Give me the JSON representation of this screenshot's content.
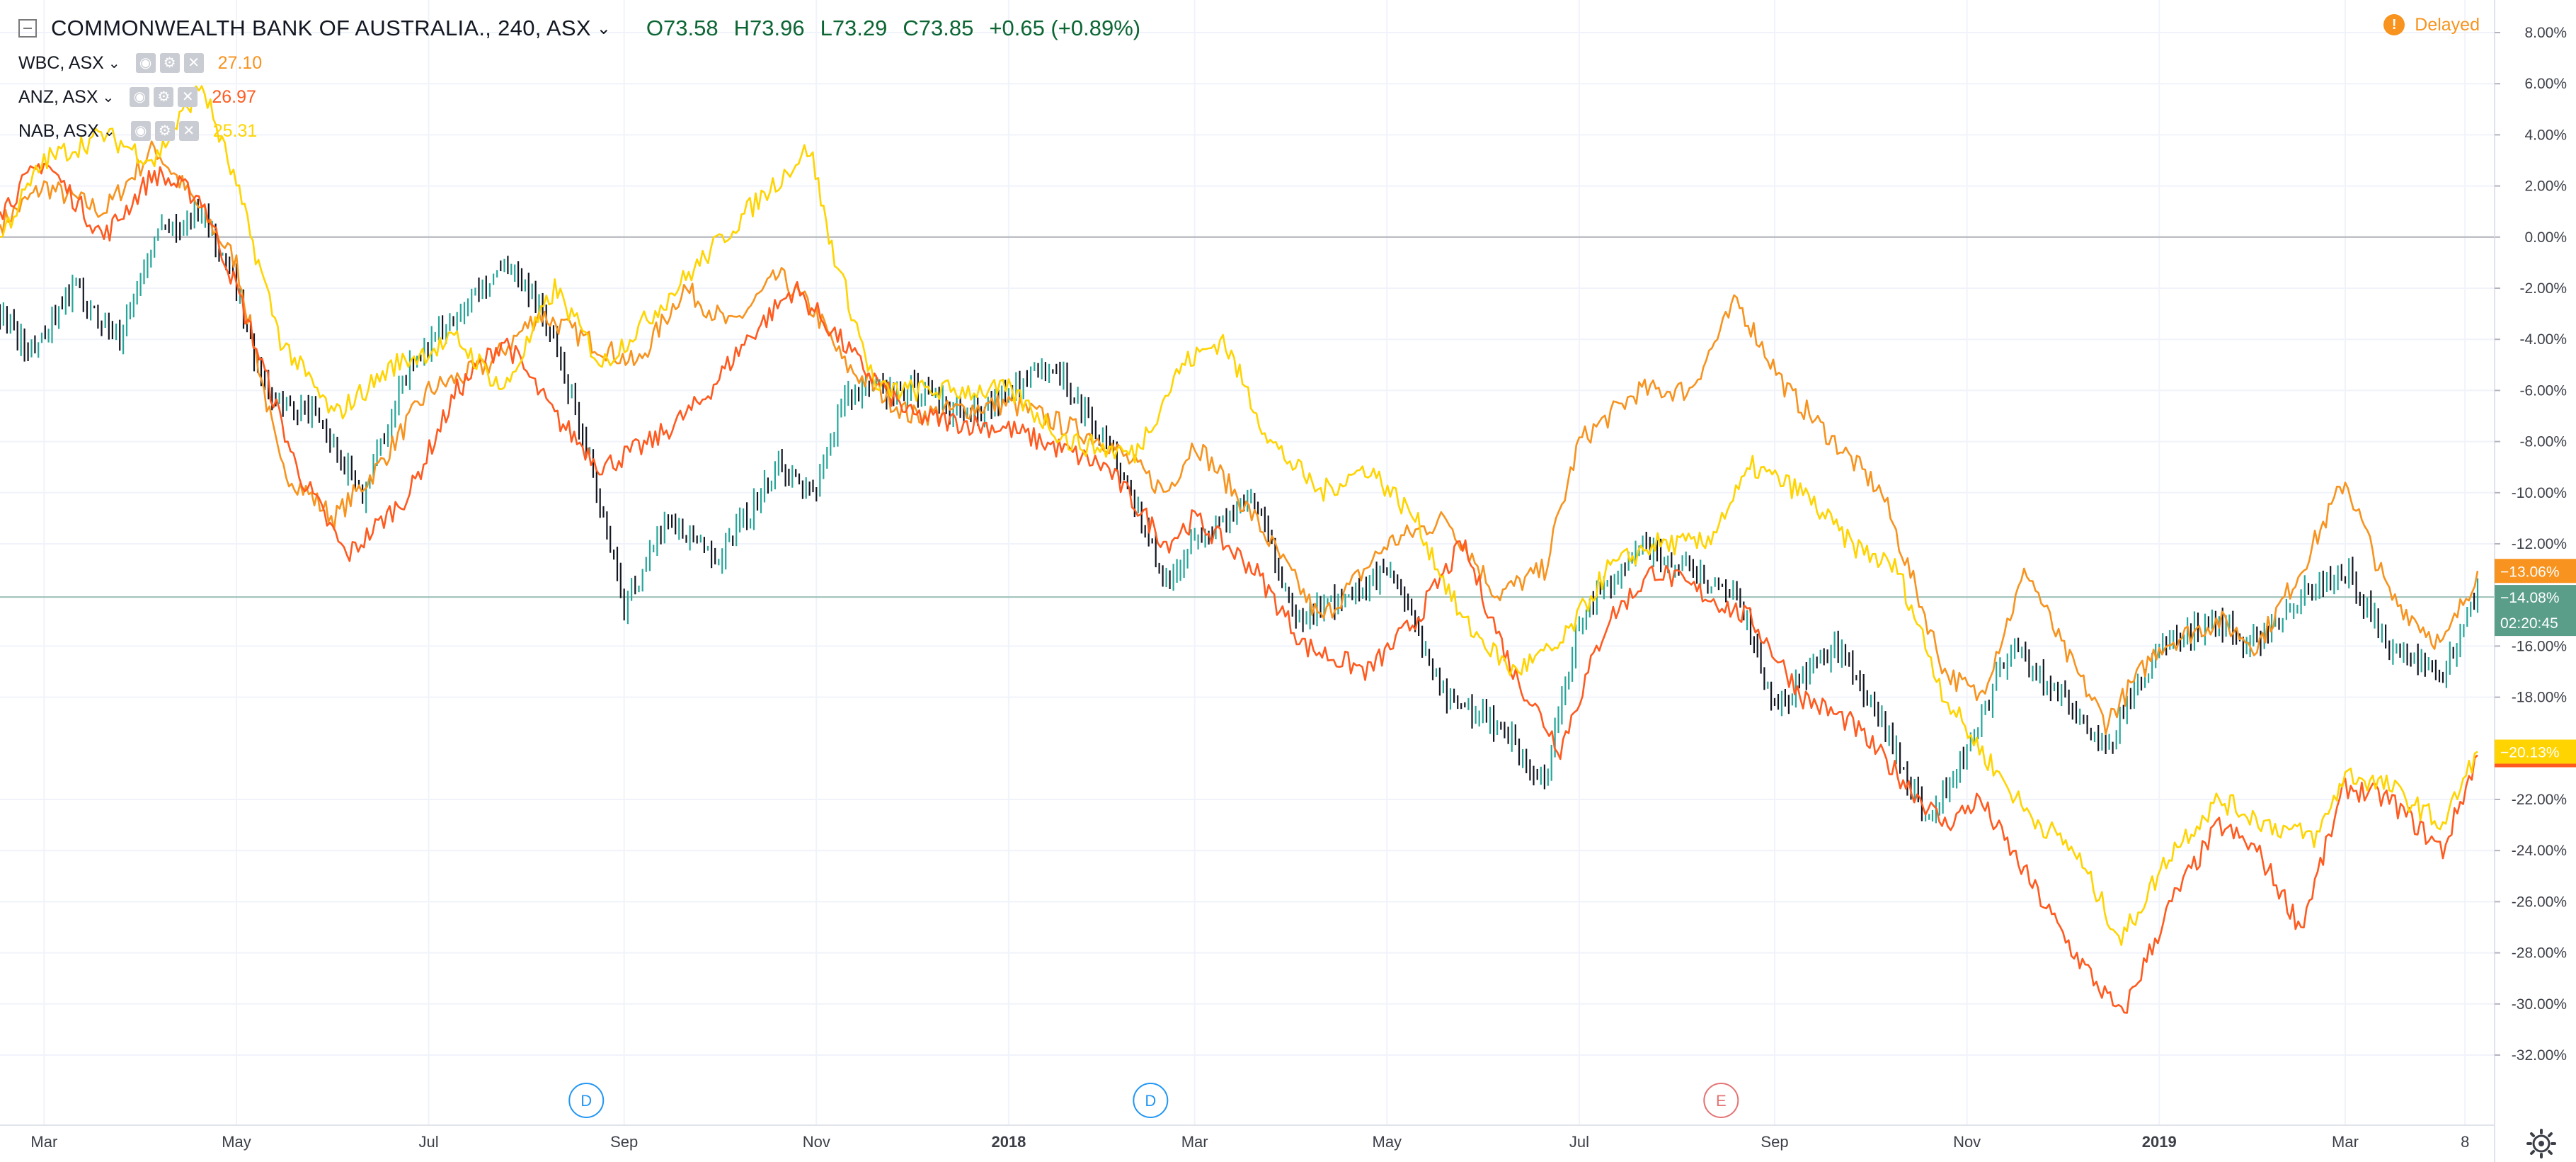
{
  "header": {
    "title": "COMMONWEALTH BANK OF AUSTRALIA., 240, ASX",
    "ohlc": {
      "open": "O73.58",
      "high": "H73.96",
      "low": "L73.29",
      "close": "C73.85",
      "change": "+0.65 (+0.89%)"
    },
    "delayed_label": "Delayed",
    "delayed_icon": "!"
  },
  "compare": [
    {
      "symbol": "WBC, ASX",
      "value": "27.10",
      "color": "#f7931e"
    },
    {
      "symbol": "ANZ, ASX",
      "value": "26.97",
      "color": "#ff5a1f"
    },
    {
      "symbol": "NAB, ASX",
      "value": "25.31",
      "color": "#ffd400"
    }
  ],
  "chart_data": {
    "type": "line",
    "title": "COMMONWEALTH BANK OF AUSTRALIA., 240, ASX",
    "y_unit": "%",
    "ylim": [
      -33.5,
      9.2
    ],
    "y_ticks": [
      "8.00%",
      "6.00%",
      "4.00%",
      "2.00%",
      "0.00%",
      "-2.00%",
      "-4.00%",
      "-6.00%",
      "-8.00%",
      "-10.00%",
      "-12.00%",
      "-16.00%",
      "-18.00%",
      "-22.00%",
      "-24.00%",
      "-26.00%",
      "-28.00%",
      "-30.00%",
      "-32.00%"
    ],
    "y_tick_values": [
      8,
      6,
      4,
      2,
      0,
      -2,
      -4,
      -6,
      -8,
      -10,
      -12,
      -16,
      -18,
      -22,
      -24,
      -26,
      -28,
      -30,
      -32
    ],
    "x_range": [
      "2017-02-15",
      "2019-04-12"
    ],
    "x_ticks": [
      {
        "label": "Mar",
        "date": "2017-03-01"
      },
      {
        "label": "May",
        "date": "2017-05-01"
      },
      {
        "label": "Jul",
        "date": "2017-07-01"
      },
      {
        "label": "Sep",
        "date": "2017-09-01"
      },
      {
        "label": "Nov",
        "date": "2017-11-01"
      },
      {
        "label": "2018",
        "date": "2018-01-01",
        "bold": true
      },
      {
        "label": "Mar",
        "date": "2018-03-01"
      },
      {
        "label": "May",
        "date": "2018-05-01"
      },
      {
        "label": "Jul",
        "date": "2018-07-01"
      },
      {
        "label": "Sep",
        "date": "2018-09-01"
      },
      {
        "label": "Nov",
        "date": "2018-11-01"
      },
      {
        "label": "2019",
        "date": "2019-01-01",
        "bold": true
      },
      {
        "label": "Mar",
        "date": "2019-03-01"
      },
      {
        "label": "8",
        "date": "2019-04-08"
      }
    ],
    "grid": true,
    "series": [
      {
        "name": "COMMONWEALTH BANK OF AUSTRALIA., 240, ASX",
        "style": "bars",
        "color": "#131722",
        "up_color": "#26a69a",
        "last": -14.08,
        "points": [
          [
            "2017-02-15",
            -3
          ],
          [
            "2017-02-25",
            -4.5
          ],
          [
            "2017-03-10",
            -2
          ],
          [
            "2017-03-25",
            -4
          ],
          [
            "2017-04-05",
            0
          ],
          [
            "2017-04-20",
            1
          ],
          [
            "2017-05-01",
            -2
          ],
          [
            "2017-05-10",
            -6
          ],
          [
            "2017-05-25",
            -7
          ],
          [
            "2017-06-10",
            -10
          ],
          [
            "2017-06-25",
            -5
          ],
          [
            "2017-07-10",
            -3
          ],
          [
            "2017-07-25",
            -1
          ],
          [
            "2017-08-05",
            -2.5
          ],
          [
            "2017-08-20",
            -8
          ],
          [
            "2017-09-01",
            -14.5
          ],
          [
            "2017-09-15",
            -11
          ],
          [
            "2017-10-01",
            -12.5
          ],
          [
            "2017-10-20",
            -9
          ],
          [
            "2017-11-01",
            -10
          ],
          [
            "2017-11-10",
            -6
          ],
          [
            "2017-12-01",
            -6
          ],
          [
            "2017-12-20",
            -7
          ],
          [
            "2018-01-01",
            -6
          ],
          [
            "2018-01-15",
            -5
          ],
          [
            "2018-02-01",
            -8
          ],
          [
            "2018-02-20",
            -13.5
          ],
          [
            "2018-03-01",
            -12
          ],
          [
            "2018-03-20",
            -10
          ],
          [
            "2018-04-01",
            -15
          ],
          [
            "2018-04-20",
            -14
          ],
          [
            "2018-05-01",
            -13
          ],
          [
            "2018-05-20",
            -18
          ],
          [
            "2018-06-05",
            -19
          ],
          [
            "2018-06-20",
            -21.5
          ],
          [
            "2018-07-01",
            -15
          ],
          [
            "2018-07-20",
            -12
          ],
          [
            "2018-08-05",
            -13
          ],
          [
            "2018-08-20",
            -14
          ],
          [
            "2018-09-01",
            -18.5
          ],
          [
            "2018-09-20",
            -16
          ],
          [
            "2018-10-05",
            -19
          ],
          [
            "2018-10-20",
            -23
          ],
          [
            "2018-11-01",
            -20
          ],
          [
            "2018-11-15",
            -16
          ],
          [
            "2018-12-01",
            -18
          ],
          [
            "2018-12-15",
            -20
          ],
          [
            "2019-01-01",
            -16
          ],
          [
            "2019-01-20",
            -15
          ],
          [
            "2019-02-01",
            -16
          ],
          [
            "2019-02-15",
            -14
          ],
          [
            "2019-03-01",
            -13
          ],
          [
            "2019-03-15",
            -16
          ],
          [
            "2019-04-01",
            -17
          ],
          [
            "2019-04-12",
            -14.08
          ]
        ]
      },
      {
        "name": "WBC, ASX",
        "color": "#f7931e",
        "last": -13.06,
        "points": [
          [
            "2017-02-15",
            0.5
          ],
          [
            "2017-03-01",
            2
          ],
          [
            "2017-03-20",
            1
          ],
          [
            "2017-04-05",
            3.5
          ],
          [
            "2017-04-20",
            1
          ],
          [
            "2017-05-01",
            -1
          ],
          [
            "2017-05-15",
            -9
          ],
          [
            "2017-06-01",
            -11
          ],
          [
            "2017-06-15",
            -9
          ],
          [
            "2017-07-01",
            -6
          ],
          [
            "2017-07-20",
            -5
          ],
          [
            "2017-08-05",
            -3
          ],
          [
            "2017-08-20",
            -4
          ],
          [
            "2017-09-05",
            -5
          ],
          [
            "2017-09-20",
            -2
          ],
          [
            "2017-10-05",
            -3.5
          ],
          [
            "2017-10-20",
            -1.5
          ],
          [
            "2017-11-01",
            -3
          ],
          [
            "2017-11-10",
            -5
          ],
          [
            "2017-12-01",
            -7
          ],
          [
            "2018-01-01",
            -6.5
          ],
          [
            "2018-02-01",
            -8
          ],
          [
            "2018-02-20",
            -10
          ],
          [
            "2018-03-01",
            -8
          ],
          [
            "2018-03-20",
            -11
          ],
          [
            "2018-04-10",
            -15
          ],
          [
            "2018-05-01",
            -12
          ],
          [
            "2018-05-20",
            -11
          ],
          [
            "2018-06-05",
            -14
          ],
          [
            "2018-06-20",
            -13
          ],
          [
            "2018-07-01",
            -8
          ],
          [
            "2018-07-20",
            -6
          ],
          [
            "2018-08-05",
            -6
          ],
          [
            "2018-08-20",
            -2.5
          ],
          [
            "2018-09-05",
            -6
          ],
          [
            "2018-09-20",
            -8
          ],
          [
            "2018-10-05",
            -10
          ],
          [
            "2018-10-25",
            -17
          ],
          [
            "2018-11-05",
            -18
          ],
          [
            "2018-11-20",
            -13
          ],
          [
            "2018-12-01",
            -16
          ],
          [
            "2018-12-15",
            -19
          ],
          [
            "2019-01-01",
            -16
          ],
          [
            "2019-01-20",
            -15
          ],
          [
            "2019-02-01",
            -16
          ],
          [
            "2019-02-15",
            -13
          ],
          [
            "2019-03-01",
            -9.5
          ],
          [
            "2019-03-15",
            -14
          ],
          [
            "2019-04-01",
            -16
          ],
          [
            "2019-04-12",
            -13.06
          ]
        ]
      },
      {
        "name": "ANZ, ASX",
        "color": "#ff5a1f",
        "last": -20.27,
        "points": [
          [
            "2017-02-15",
            1
          ],
          [
            "2017-03-01",
            3
          ],
          [
            "2017-03-20",
            0
          ],
          [
            "2017-04-05",
            2.5
          ],
          [
            "2017-04-20",
            1.5
          ],
          [
            "2017-05-01",
            -2
          ],
          [
            "2017-05-20",
            -9
          ],
          [
            "2017-06-05",
            -12.5
          ],
          [
            "2017-06-25",
            -10
          ],
          [
            "2017-07-10",
            -6
          ],
          [
            "2017-07-25",
            -4
          ],
          [
            "2017-08-10",
            -7
          ],
          [
            "2017-08-25",
            -9
          ],
          [
            "2017-09-10",
            -8
          ],
          [
            "2017-09-25",
            -6.5
          ],
          [
            "2017-10-10",
            -4
          ],
          [
            "2017-10-25",
            -2
          ],
          [
            "2017-11-05",
            -3.5
          ],
          [
            "2017-11-15",
            -5
          ],
          [
            "2017-12-01",
            -7
          ],
          [
            "2018-01-01",
            -7.5
          ],
          [
            "2018-02-01",
            -9
          ],
          [
            "2018-02-20",
            -12
          ],
          [
            "2018-03-01",
            -11
          ],
          [
            "2018-03-20",
            -13
          ],
          [
            "2018-04-05",
            -16
          ],
          [
            "2018-04-25",
            -17
          ],
          [
            "2018-05-10",
            -15
          ],
          [
            "2018-05-25",
            -12
          ],
          [
            "2018-06-10",
            -17
          ],
          [
            "2018-06-25",
            -20
          ],
          [
            "2018-07-10",
            -15
          ],
          [
            "2018-07-25",
            -13
          ],
          [
            "2018-08-10",
            -14
          ],
          [
            "2018-08-25",
            -15
          ],
          [
            "2018-09-10",
            -18
          ],
          [
            "2018-09-25",
            -19
          ],
          [
            "2018-10-10",
            -21
          ],
          [
            "2018-10-25",
            -23
          ],
          [
            "2018-11-05",
            -22
          ],
          [
            "2018-11-20",
            -25
          ],
          [
            "2018-12-05",
            -28
          ],
          [
            "2018-12-20",
            -30.5
          ],
          [
            "2019-01-05",
            -26
          ],
          [
            "2019-01-20",
            -23
          ],
          [
            "2019-02-01",
            -24
          ],
          [
            "2019-02-15",
            -27
          ],
          [
            "2019-03-01",
            -21.5
          ],
          [
            "2019-03-15",
            -22
          ],
          [
            "2019-04-01",
            -24
          ],
          [
            "2019-04-12",
            -20.27
          ]
        ]
      },
      {
        "name": "NAB, ASX",
        "color": "#ffd400",
        "last": -20.13,
        "points": [
          [
            "2017-02-15",
            0
          ],
          [
            "2017-03-01",
            3
          ],
          [
            "2017-03-20",
            4
          ],
          [
            "2017-04-05",
            3
          ],
          [
            "2017-04-20",
            6
          ],
          [
            "2017-05-01",
            2
          ],
          [
            "2017-05-15",
            -4
          ],
          [
            "2017-06-01",
            -7
          ],
          [
            "2017-06-20",
            -5
          ],
          [
            "2017-07-10",
            -4
          ],
          [
            "2017-07-25",
            -6
          ],
          [
            "2017-08-10",
            -2
          ],
          [
            "2017-08-25",
            -5
          ],
          [
            "2017-09-10",
            -3
          ],
          [
            "2017-09-25",
            -1
          ],
          [
            "2017-10-10",
            1
          ],
          [
            "2017-10-30",
            3.5
          ],
          [
            "2017-11-05",
            0
          ],
          [
            "2017-11-20",
            -6
          ],
          [
            "2017-12-10",
            -6
          ],
          [
            "2018-01-01",
            -6
          ],
          [
            "2018-01-20",
            -8
          ],
          [
            "2018-02-10",
            -8.5
          ],
          [
            "2018-02-25",
            -5
          ],
          [
            "2018-03-10",
            -4
          ],
          [
            "2018-03-25",
            -8
          ],
          [
            "2018-04-10",
            -10
          ],
          [
            "2018-04-25",
            -9
          ],
          [
            "2018-05-10",
            -11
          ],
          [
            "2018-05-25",
            -15
          ],
          [
            "2018-06-10",
            -17
          ],
          [
            "2018-06-25",
            -16
          ],
          [
            "2018-07-10",
            -13
          ],
          [
            "2018-07-25",
            -12
          ],
          [
            "2018-08-10",
            -12
          ],
          [
            "2018-08-25",
            -9
          ],
          [
            "2018-09-10",
            -10
          ],
          [
            "2018-09-25",
            -12
          ],
          [
            "2018-10-10",
            -13
          ],
          [
            "2018-10-25",
            -18
          ],
          [
            "2018-11-05",
            -20
          ],
          [
            "2018-11-20",
            -22.5
          ],
          [
            "2018-12-05",
            -24
          ],
          [
            "2018-12-20",
            -27.5
          ],
          [
            "2019-01-05",
            -24
          ],
          [
            "2019-01-20",
            -22
          ],
          [
            "2019-02-05",
            -23
          ],
          [
            "2019-02-20",
            -23.5
          ],
          [
            "2019-03-01",
            -21
          ],
          [
            "2019-03-15",
            -21.5
          ],
          [
            "2019-04-01",
            -23
          ],
          [
            "2019-04-12",
            -20.13
          ]
        ]
      }
    ],
    "countdown": "02:20:45",
    "events": [
      {
        "label": "D",
        "date": "2017-08-20",
        "color": "#2196f3"
      },
      {
        "label": "D",
        "date": "2018-02-15",
        "color": "#2196f3"
      },
      {
        "label": "E",
        "date": "2018-08-15",
        "color": "#e57373"
      }
    ]
  }
}
